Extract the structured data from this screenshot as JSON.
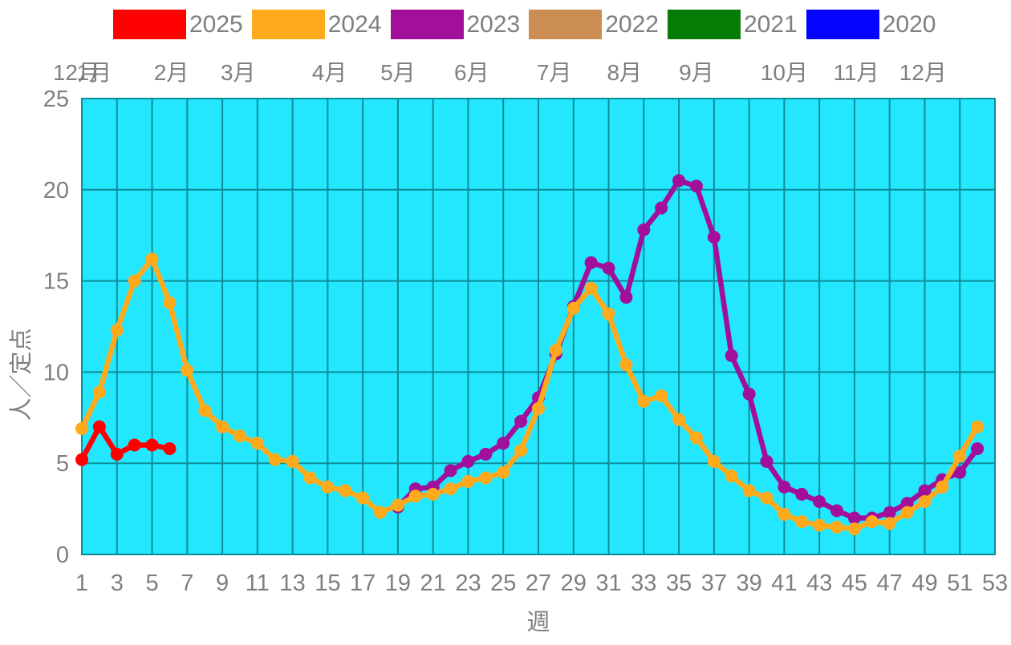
{
  "legend": [
    {
      "label": "2025",
      "color": "#FF0000"
    },
    {
      "label": "2024",
      "color": "#FFAA1C"
    },
    {
      "label": "2023",
      "color": "#A20F9B"
    },
    {
      "label": "2022",
      "color": "#CB8D51"
    },
    {
      "label": "2021",
      "color": "#067B06"
    },
    {
      "label": "2020",
      "color": "#0404FF"
    }
  ],
  "colors": {
    "plot_background": "#22E7FF",
    "gridline": "#0E8D99",
    "text": "#7f7f7f"
  },
  "chart_data": {
    "type": "line",
    "title": "",
    "xlabel": "週",
    "ylabel": "人／定点",
    "ylim": [
      0,
      25
    ],
    "x_min": 1,
    "x_max": 53,
    "grid": true,
    "legend_position": "top",
    "y_ticks": [
      0,
      5,
      10,
      15,
      20,
      25
    ],
    "x_ticks": [
      1,
      3,
      5,
      7,
      9,
      11,
      13,
      15,
      17,
      19,
      21,
      23,
      25,
      27,
      29,
      31,
      33,
      35,
      37,
      39,
      41,
      43,
      45,
      47,
      49,
      51,
      53
    ],
    "month_labels": [
      {
        "label": "12月",
        "week": 0.7
      },
      {
        "label": "1月",
        "week": 1.7
      },
      {
        "label": "2月",
        "week": 6.1
      },
      {
        "label": "3月",
        "week": 9.9
      },
      {
        "label": "4月",
        "week": 15.1
      },
      {
        "label": "5月",
        "week": 19.0
      },
      {
        "label": "6月",
        "week": 23.2
      },
      {
        "label": "7月",
        "week": 27.9
      },
      {
        "label": "8月",
        "week": 31.9
      },
      {
        "label": "9月",
        "week": 36.0
      },
      {
        "label": "10月",
        "week": 41.0
      },
      {
        "label": "11月",
        "week": 45.1
      },
      {
        "label": "12月",
        "week": 48.9
      }
    ],
    "series": [
      {
        "name": "2025",
        "color": "#FF0000",
        "start_week": 1,
        "values": [
          5.2,
          7.0,
          5.5,
          6.0,
          6.0,
          5.8
        ]
      },
      {
        "name": "2024",
        "color": "#FFAA1C",
        "start_week": 1,
        "values": [
          6.9,
          8.9,
          12.3,
          15.0,
          16.2,
          13.8,
          10.1,
          7.9,
          7.0,
          6.5,
          6.1,
          5.2,
          5.1,
          4.2,
          3.7,
          3.5,
          3.1,
          2.3,
          2.7,
          3.2,
          3.3,
          3.6,
          4.0,
          4.2,
          4.5,
          5.7,
          8.0,
          11.2,
          13.5,
          14.6,
          13.2,
          10.4,
          8.4,
          8.7,
          7.4,
          6.4,
          5.1,
          4.3,
          3.5,
          3.1,
          2.2,
          1.8,
          1.6,
          1.5,
          1.4,
          1.8,
          1.7,
          2.3,
          2.9,
          3.7,
          5.4,
          7.0
        ]
      },
      {
        "name": "2023",
        "color": "#A20F9B",
        "start_week": 19,
        "values": [
          2.6,
          3.6,
          3.7,
          4.6,
          5.1,
          5.5,
          6.1,
          7.3,
          8.6,
          11.0,
          13.6,
          16.0,
          15.7,
          14.1,
          17.8,
          19.0,
          20.5,
          20.2,
          17.4,
          10.9,
          8.8,
          5.1,
          3.7,
          3.3,
          2.9,
          2.4,
          2.0,
          2.0,
          2.3,
          2.8,
          3.5,
          4.1,
          4.5,
          5.8
        ]
      },
      {
        "name": "2022",
        "color": "#CB8D51",
        "start_week": null,
        "values": []
      },
      {
        "name": "2021",
        "color": "#067B06",
        "start_week": null,
        "values": []
      },
      {
        "name": "2020",
        "color": "#0404FF",
        "start_week": null,
        "values": []
      }
    ]
  }
}
